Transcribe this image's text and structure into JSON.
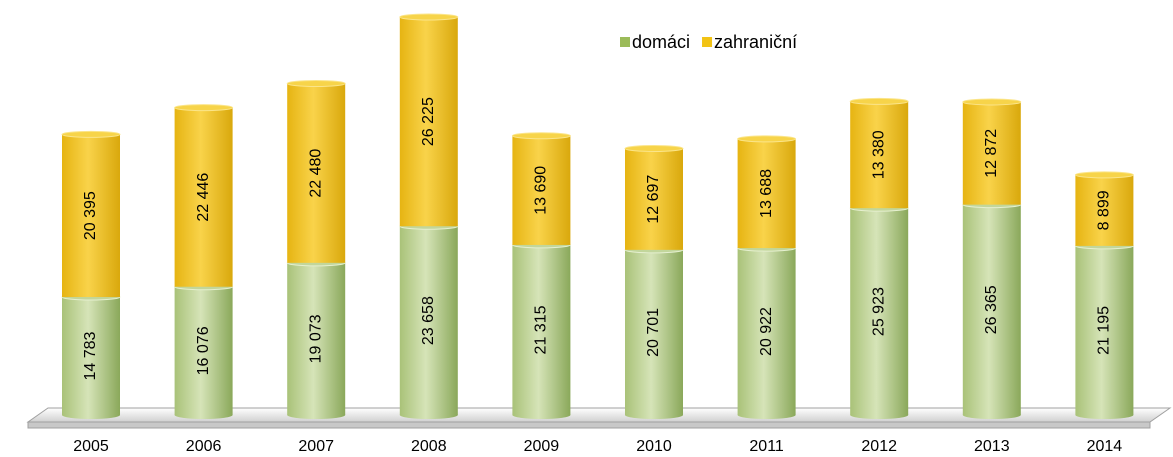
{
  "chart_data": {
    "type": "stacked-bar",
    "categories": [
      "2005",
      "2006",
      "2007",
      "2008",
      "2009",
      "2010",
      "2011",
      "2012",
      "2013",
      "2014"
    ],
    "legend": "top-right",
    "series": [
      {
        "name": "domáci",
        "color": "#9bbb59",
        "values": [
          14783,
          16076,
          19073,
          23658,
          21315,
          20701,
          20922,
          25923,
          26365,
          21195
        ],
        "value_labels": [
          "14 783",
          "16 076",
          "19 073",
          "23 658",
          "21 315",
          "20 701",
          "20 922",
          "25 923",
          "26 365",
          "21 195"
        ]
      },
      {
        "name": "zahraniční",
        "color": "#f2c314",
        "values": [
          20395,
          22446,
          22480,
          26225,
          13690,
          12697,
          13688,
          13380,
          12872,
          8899
        ],
        "value_labels": [
          "20 395",
          "22 446",
          "22 480",
          "26 225",
          "13 690",
          "12 697",
          "13 688",
          "13 380",
          "12 872",
          "8 899"
        ]
      }
    ]
  }
}
